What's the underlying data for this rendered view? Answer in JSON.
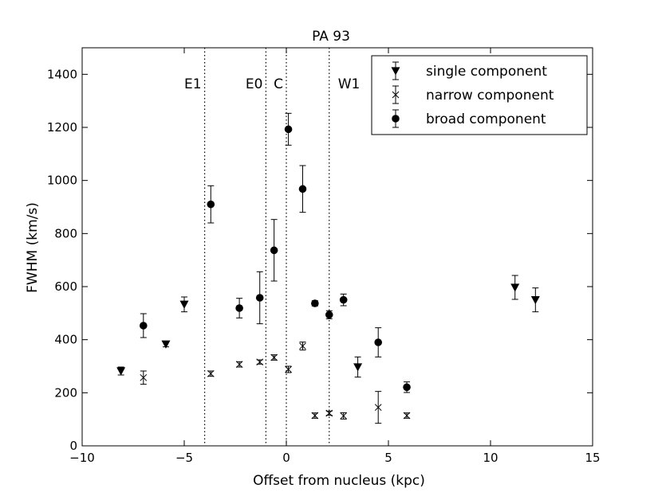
{
  "chart_data": {
    "type": "scatter",
    "title": "PA 93",
    "xlabel": "Offset from nucleus (kpc)",
    "ylabel": "FWHM (km/s)",
    "xlim": [
      -10,
      15
    ],
    "ylim": [
      0,
      1500
    ],
    "x_ticks": [
      -10,
      -5,
      0,
      5,
      10,
      15
    ],
    "x_tick_labels": [
      "−10",
      "−5",
      "0",
      "5",
      "10",
      "15"
    ],
    "y_ticks": [
      0,
      200,
      400,
      600,
      800,
      1000,
      1200,
      1400
    ],
    "y_tick_labels": [
      "0",
      "200",
      "400",
      "600",
      "800",
      "1000",
      "1200",
      "1400"
    ],
    "grid": false,
    "legend_position": "top-right",
    "region_lines": [
      {
        "x": -4.0,
        "label": "E1"
      },
      {
        "x": -1.0,
        "label": "E0"
      },
      {
        "x": 0.0,
        "label": "C"
      },
      {
        "x": 2.1,
        "label": "W1"
      }
    ],
    "series": [
      {
        "name": "single component",
        "marker": "triangle-down",
        "points": [
          {
            "x": -8.1,
            "y": 282,
            "err": 15
          },
          {
            "x": -5.9,
            "y": 383,
            "err": 10
          },
          {
            "x": -5.0,
            "y": 533,
            "err": 28
          },
          {
            "x": 3.5,
            "y": 297,
            "err": 38
          },
          {
            "x": 11.2,
            "y": 597,
            "err": 45
          },
          {
            "x": 12.2,
            "y": 550,
            "err": 45
          }
        ]
      },
      {
        "name": "narrow component",
        "marker": "x",
        "points": [
          {
            "x": -7.0,
            "y": 257,
            "err": 25
          },
          {
            "x": -3.7,
            "y": 272,
            "err": 10
          },
          {
            "x": -2.3,
            "y": 307,
            "err": 10
          },
          {
            "x": -1.3,
            "y": 316,
            "err": 8
          },
          {
            "x": -0.6,
            "y": 333,
            "err": 10
          },
          {
            "x": 0.1,
            "y": 288,
            "err": 12
          },
          {
            "x": 0.8,
            "y": 376,
            "err": 15
          },
          {
            "x": 1.4,
            "y": 114,
            "err": 10
          },
          {
            "x": 2.1,
            "y": 123,
            "err": 8
          },
          {
            "x": 2.8,
            "y": 113,
            "err": 12
          },
          {
            "x": 4.5,
            "y": 145,
            "err": 60
          },
          {
            "x": 5.9,
            "y": 114,
            "err": 10
          }
        ]
      },
      {
        "name": "broad component",
        "marker": "circle",
        "points": [
          {
            "x": -7.0,
            "y": 453,
            "err": 45
          },
          {
            "x": -3.7,
            "y": 910,
            "err": 70
          },
          {
            "x": -2.3,
            "y": 519,
            "err": 37
          },
          {
            "x": -1.3,
            "y": 558,
            "err": 98
          },
          {
            "x": -0.6,
            "y": 737,
            "err": 116
          },
          {
            "x": 0.1,
            "y": 1193,
            "err": 60
          },
          {
            "x": 0.8,
            "y": 968,
            "err": 88
          },
          {
            "x": 1.4,
            "y": 537,
            "err": 10
          },
          {
            "x": 2.1,
            "y": 494,
            "err": 15
          },
          {
            "x": 2.8,
            "y": 550,
            "err": 22
          },
          {
            "x": 4.5,
            "y": 390,
            "err": 55
          },
          {
            "x": 5.9,
            "y": 221,
            "err": 20
          }
        ]
      }
    ]
  }
}
